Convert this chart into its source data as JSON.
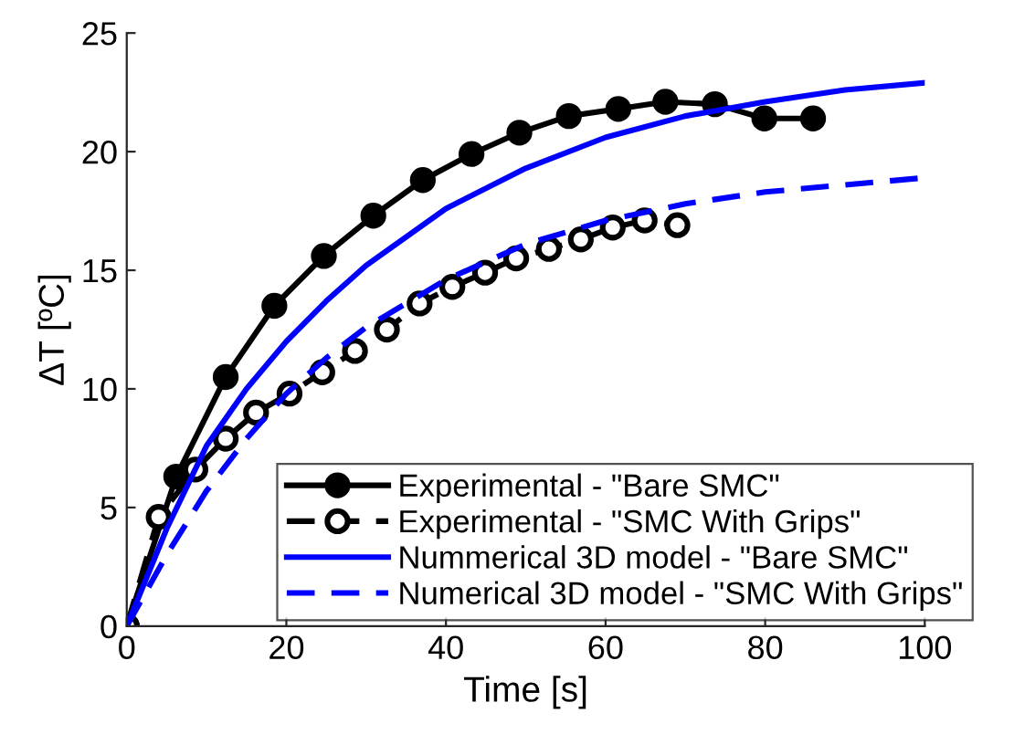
{
  "chart_data": {
    "type": "line",
    "xlabel": "Time [s]",
    "ylabel": "ΔT [ºC]",
    "xlim": [
      0,
      100
    ],
    "xticks": [
      0,
      20,
      40,
      60,
      80,
      100
    ],
    "ylim": [
      0,
      25
    ],
    "yticks": [
      0,
      5,
      10,
      15,
      20,
      25
    ],
    "grid": false,
    "legend": "bottom right",
    "series": [
      {
        "name": "Experimental - \"Bare SMC\"",
        "color": "#000000",
        "marker": "circle",
        "line_style": "solid",
        "x": [
          0,
          6.2,
          12.4,
          18.5,
          24.7,
          30.9,
          37.1,
          43.2,
          49.2,
          55.4,
          61.6,
          67.5,
          73.7,
          79.9,
          86
        ],
        "values": [
          0,
          6.3,
          10.5,
          13.5,
          15.6,
          17.3,
          18.8,
          19.9,
          20.8,
          21.5,
          21.8,
          22.1,
          22.0,
          21.4,
          21.4
        ]
      },
      {
        "name": "Experimental - \"SMC With Grips\"",
        "color": "#000000",
        "marker": "circle",
        "line_style": "dashed",
        "x": [
          0,
          4.0,
          8.6,
          12.4,
          16.2,
          20.4,
          24.5,
          28.6,
          32.6,
          36.7,
          40.8,
          44.9,
          48.8,
          52.9,
          56.9,
          60.9,
          64.9,
          69.0
        ],
        "values": [
          0,
          4.6,
          6.6,
          7.9,
          9.0,
          9.8,
          10.7,
          11.6,
          12.5,
          13.6,
          14.3,
          14.9,
          15.5,
          15.9,
          16.3,
          16.8,
          17.1,
          16.9
        ]
      },
      {
        "name": "Nummerical 3D model - \"Bare SMC\"",
        "color": "#0000ff",
        "marker": "none",
        "line_style": "solid",
        "x": [
          0,
          5,
          10,
          15,
          20,
          25,
          30,
          40,
          50,
          60,
          70,
          80,
          90,
          100
        ],
        "values": [
          0,
          4.1,
          7.6,
          10.0,
          12.0,
          13.7,
          15.2,
          17.6,
          19.3,
          20.6,
          21.5,
          22.1,
          22.6,
          22.9
        ]
      },
      {
        "name": "Numerical 3D model - \"SMC With Grips\"",
        "color": "#0000ff",
        "marker": "none",
        "line_style": "dashed",
        "x": [
          0,
          5,
          10,
          15,
          20,
          25,
          30,
          40,
          50,
          60,
          70,
          80,
          90,
          100
        ],
        "values": [
          0,
          3.0,
          5.7,
          7.9,
          9.8,
          11.3,
          12.6,
          14.6,
          16.1,
          17.1,
          17.8,
          18.3,
          18.6,
          18.9
        ]
      }
    ]
  }
}
